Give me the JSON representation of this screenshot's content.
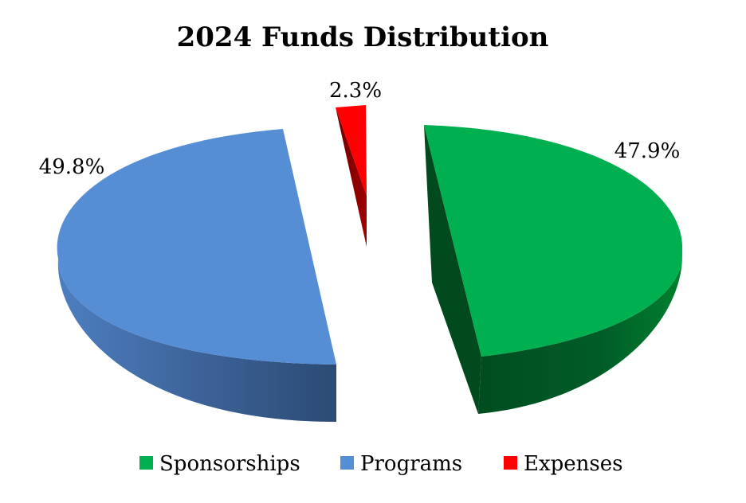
{
  "chart_data": {
    "type": "pie",
    "title": "2024 Funds Distribution",
    "style": "3d-exploded",
    "legend_position": "bottom",
    "slices": [
      {
        "name": "Sponsorships",
        "value": 47.9,
        "label": "47.9%",
        "color": "#00b050"
      },
      {
        "name": "Expenses",
        "value": 2.3,
        "label": "2.3%",
        "color": "#ff0000"
      },
      {
        "name": "Programs",
        "value": 49.8,
        "label": "49.8%",
        "color": "#558ed5"
      }
    ],
    "legend": [
      {
        "name": "Sponsorships",
        "color": "#00b050"
      },
      {
        "name": "Programs",
        "color": "#558ed5"
      },
      {
        "name": "Expenses",
        "color": "#ff0000"
      }
    ]
  }
}
